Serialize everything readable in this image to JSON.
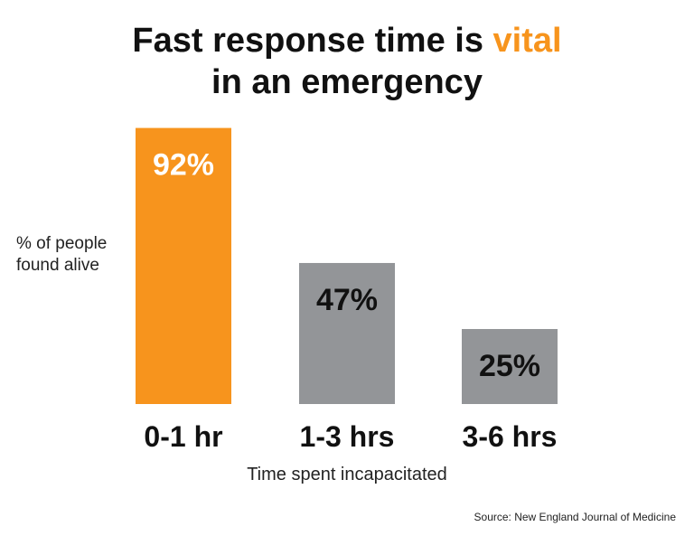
{
  "title": {
    "line1_prefix": "Fast response time is ",
    "line1_accent": "vital",
    "line2": "in an emergency"
  },
  "source": "Source: New England Journal of Medicine",
  "colors": {
    "highlight": "#f7941d",
    "neutral": "#939598",
    "highlight_label": "#ffffff",
    "neutral_label": "#111111"
  },
  "chart_data": {
    "type": "bar",
    "categories": [
      "0-1 hr",
      "1-3 hrs",
      "3-6 hrs"
    ],
    "values": [
      92,
      47,
      25
    ],
    "data_labels": [
      "92%",
      "47%",
      "25%"
    ],
    "highlight_index": 0,
    "ylabel": "% of people found alive",
    "xlabel": "Time spent incapacitated",
    "ylim": [
      0,
      100
    ],
    "grid": false,
    "legend": "none"
  }
}
